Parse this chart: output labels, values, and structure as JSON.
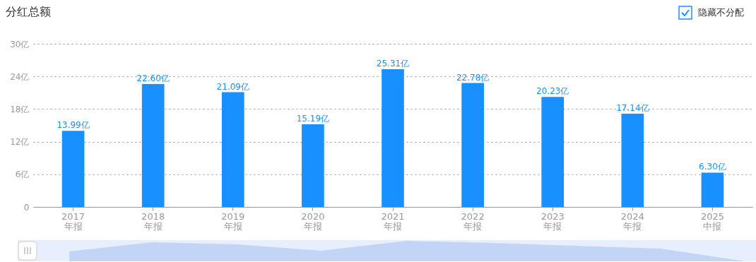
{
  "chart_data": {
    "type": "bar",
    "title": "分红总额",
    "annotations": [
      "隐藏不分配"
    ],
    "categories": [
      "2017\n年报",
      "2018\n年报",
      "2019\n年报",
      "2020\n年报",
      "2021\n年报",
      "2022\n年报",
      "2023\n年报",
      "2024\n年报",
      "2025\n中报"
    ],
    "values": [
      13.99,
      22.6,
      21.09,
      15.19,
      25.31,
      22.78,
      20.23,
      17.14,
      6.3
    ],
    "value_labels": [
      "13.99亿",
      "22.60亿",
      "21.09亿",
      "15.19亿",
      "25.31亿",
      "22.78亿",
      "20.23亿",
      "17.14亿",
      "6.30亿"
    ],
    "color": "#1890ff",
    "ylim": [
      0,
      30
    ],
    "yticks": [
      0,
      {
        "value": 6,
        "label": "6亿"
      },
      {
        "value": 12,
        "label": "12亿"
      },
      {
        "value": 18,
        "label": "18亿"
      },
      {
        "value": 24,
        "label": "24亿"
      },
      {
        "value": 30,
        "label": "30亿"
      }
    ],
    "grid": "y"
  }
}
